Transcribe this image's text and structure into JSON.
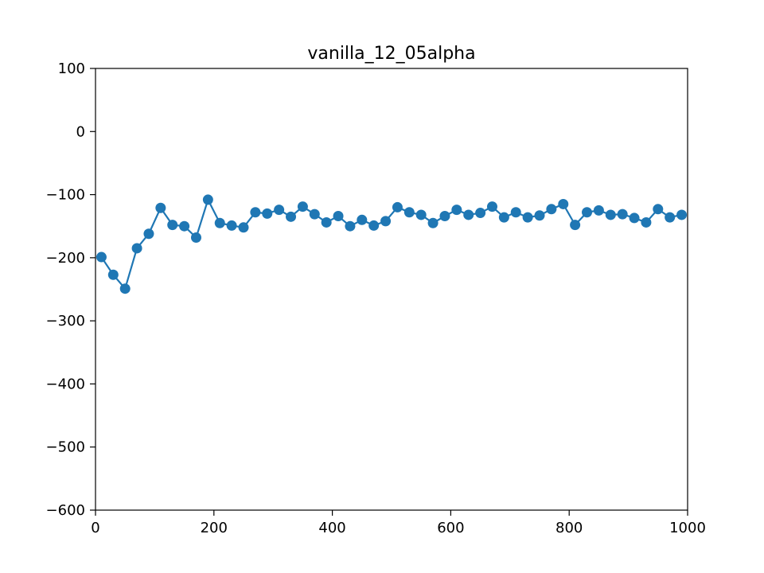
{
  "chart_data": {
    "type": "line",
    "title": "vanilla_12_05alpha",
    "xlabel": "",
    "ylabel": "",
    "xlim": [
      0,
      1000
    ],
    "ylim": [
      -600,
      100
    ],
    "xticks": [
      0,
      200,
      400,
      600,
      800,
      1000
    ],
    "yticks": [
      100,
      0,
      -100,
      -200,
      -300,
      -400,
      -500,
      -600
    ],
    "xtick_labels": [
      "0",
      "200",
      "400",
      "600",
      "800",
      "1000"
    ],
    "ytick_labels": [
      "100",
      "0",
      "−100",
      "−200",
      "−300",
      "−400",
      "−500",
      "−600"
    ],
    "grid": false,
    "series": [
      {
        "color": "#1f77b4",
        "marker": "circle",
        "x": [
          10,
          30,
          50,
          70,
          90,
          110,
          130,
          150,
          170,
          190,
          210,
          230,
          250,
          270,
          290,
          310,
          330,
          350,
          370,
          390,
          410,
          430,
          450,
          470,
          490,
          510,
          530,
          550,
          570,
          590,
          610,
          630,
          650,
          670,
          690,
          710,
          730,
          750,
          770,
          790,
          810,
          830,
          850,
          870,
          890,
          910,
          930,
          950,
          970,
          990
        ],
        "y": [
          -199,
          -227,
          -249,
          -185,
          -162,
          -121,
          -148,
          -150,
          -168,
          -108,
          -145,
          -149,
          -152,
          -128,
          -130,
          -124,
          -135,
          -119,
          -131,
          -144,
          -134,
          -150,
          -140,
          -149,
          -142,
          -120,
          -128,
          -132,
          -145,
          -134,
          -124,
          -132,
          -129,
          -119,
          -136,
          -128,
          -136,
          -133,
          -123,
          -115,
          -148,
          -128,
          -125,
          -132,
          -131,
          -137,
          -144,
          -123,
          -136,
          -132
        ]
      }
    ]
  }
}
